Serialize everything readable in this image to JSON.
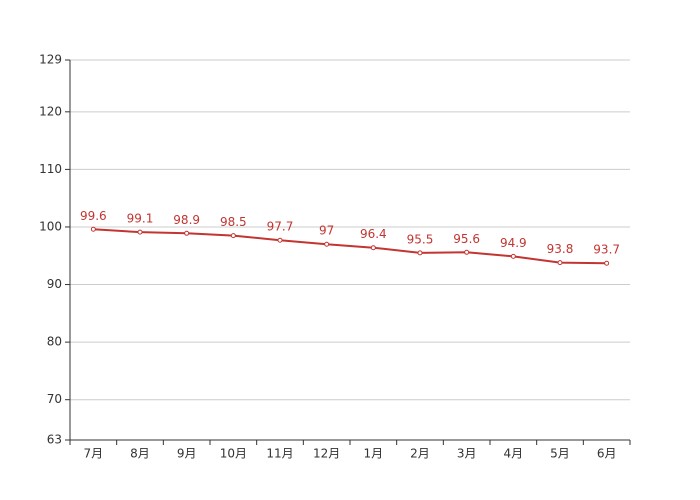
{
  "chart_data": {
    "type": "line",
    "categories": [
      "7月",
      "8月",
      "9月",
      "10月",
      "11月",
      "12月",
      "1月",
      "2月",
      "3月",
      "4月",
      "5月",
      "6月"
    ],
    "series": [
      {
        "name": null,
        "color": "#c23531",
        "values": [
          99.6,
          99.1,
          98.9,
          98.5,
          97.7,
          97,
          96.4,
          95.5,
          95.6,
          94.9,
          93.8,
          93.7
        ]
      }
    ],
    "ylim": [
      63,
      129
    ],
    "yticks": [
      63,
      70,
      80,
      90,
      100,
      110,
      120,
      129
    ],
    "grid": true
  }
}
